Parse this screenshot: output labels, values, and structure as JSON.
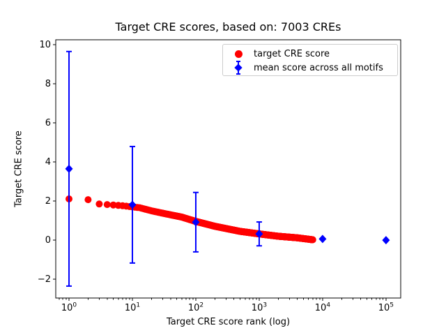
{
  "title": "Target CRE scores, based on: 7003 CREs",
  "x_axis": {
    "label": "Target CRE score rank (log)",
    "tick_base": "10",
    "tick_exponents": [
      0,
      1,
      2,
      3,
      4,
      5
    ]
  },
  "y_axis": {
    "label": "Target CRE score",
    "tick_labels": [
      "−2",
      "0",
      "2",
      "4",
      "6",
      "8",
      "10"
    ],
    "tick_values": [
      -2,
      0,
      2,
      4,
      6,
      8,
      10
    ]
  },
  "legend": {
    "items": [
      {
        "label": "target CRE score",
        "marker": "circle",
        "color": "#ff0000"
      },
      {
        "label": "mean score across all motifs",
        "marker": "diamond-with-errorbar",
        "color": "#0000ff"
      }
    ]
  },
  "colors": {
    "scatter": "#ff0000",
    "mean": "#0000ff",
    "axis": "#000000",
    "legend_border": "#cccccc",
    "background": "#ffffff"
  },
  "chart_data": {
    "type": "scatter",
    "title": "Target CRE scores, based on: 7003 CREs",
    "xlabel": "Target CRE score rank (log)",
    "ylabel": "Target CRE score",
    "x_scale": "log",
    "xlim_log10": [
      -0.209,
      5.232
    ],
    "ylim": [
      -2.96,
      10.25
    ],
    "grid": false,
    "legend_position": "upper right",
    "series": [
      {
        "name": "target CRE score",
        "type": "scatter",
        "marker": "circle",
        "color": "#ff0000",
        "n_points": 7003,
        "x_is_integer_rank": true,
        "sampled_points_log_interp": [
          [
            1,
            2.11
          ],
          [
            2,
            2.07
          ],
          [
            3,
            1.85
          ],
          [
            4,
            1.82
          ],
          [
            5,
            1.8
          ],
          [
            7,
            1.76
          ],
          [
            10,
            1.7
          ],
          [
            13,
            1.66
          ],
          [
            20,
            1.5
          ],
          [
            30,
            1.38
          ],
          [
            60,
            1.18
          ],
          [
            100,
            0.96
          ],
          [
            200,
            0.71
          ],
          [
            500,
            0.45
          ],
          [
            1000,
            0.32
          ],
          [
            2000,
            0.2
          ],
          [
            4000,
            0.12
          ],
          [
            7003,
            0.02
          ]
        ]
      },
      {
        "name": "mean score across all motifs",
        "type": "errorbar",
        "marker": "diamond",
        "color": "#0000ff",
        "points": [
          {
            "x": 1,
            "mean": 3.65,
            "std": 6.0
          },
          {
            "x": 10,
            "mean": 1.81,
            "std": 2.98
          },
          {
            "x": 100,
            "mean": 0.92,
            "std": 1.52
          },
          {
            "x": 1000,
            "mean": 0.32,
            "std": 0.61
          },
          {
            "x": 10000,
            "mean": 0.06,
            "std": 0.0
          },
          {
            "x": 100000,
            "mean": 0.0,
            "std": 0.0
          }
        ]
      }
    ]
  }
}
